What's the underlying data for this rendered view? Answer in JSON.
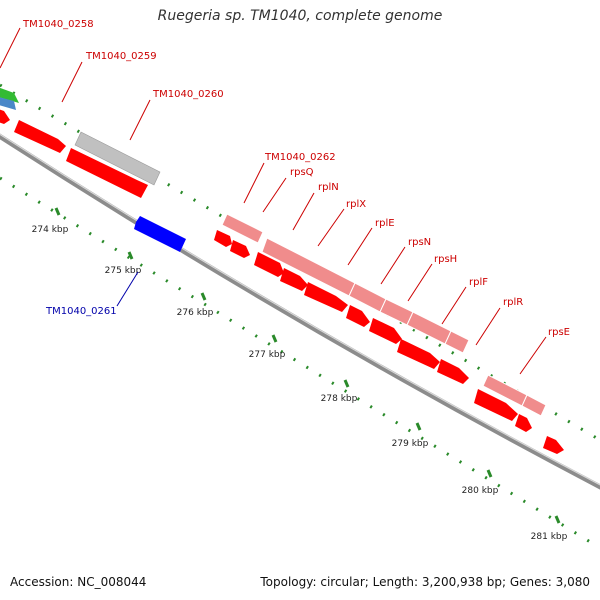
{
  "title": "Ruegeria sp. TM1040, complete genome",
  "footer": {
    "accession": "Accession: NC_008044",
    "topology": "Topology: circular; Length: 3,200,938 bp; Genes: 3,080"
  },
  "colors": {
    "backbone": "#8c8c8c",
    "forward_gene": "#ff0000",
    "reverse_gene": "#0000ff",
    "pseudo_gene": "#c0c0c0",
    "rna_gene": "#f08c8c",
    "tick": "#2a8a2a",
    "label_red": "#cc0000",
    "label_blue": "#0000aa"
  },
  "scale_labels": [
    "274 kbp",
    "275 kbp",
    "276 kbp",
    "277 kbp",
    "278 kbp",
    "279 kbp",
    "280 kbp",
    "281 kbp"
  ],
  "gene_labels": [
    {
      "name": "TM1040_0258",
      "color": "red"
    },
    {
      "name": "TM1040_0259",
      "color": "red"
    },
    {
      "name": "TM1040_0260",
      "color": "red"
    },
    {
      "name": "TM1040_0262",
      "color": "red"
    },
    {
      "name": "rpsQ",
      "color": "red"
    },
    {
      "name": "rplN",
      "color": "red"
    },
    {
      "name": "rplX",
      "color": "red"
    },
    {
      "name": "rplE",
      "color": "red"
    },
    {
      "name": "rpsN",
      "color": "red"
    },
    {
      "name": "rpsH",
      "color": "red"
    },
    {
      "name": "rplF",
      "color": "red"
    },
    {
      "name": "rplR",
      "color": "red"
    },
    {
      "name": "rpsE",
      "color": "red"
    },
    {
      "name": "TM1040_0261",
      "color": "blue"
    }
  ]
}
